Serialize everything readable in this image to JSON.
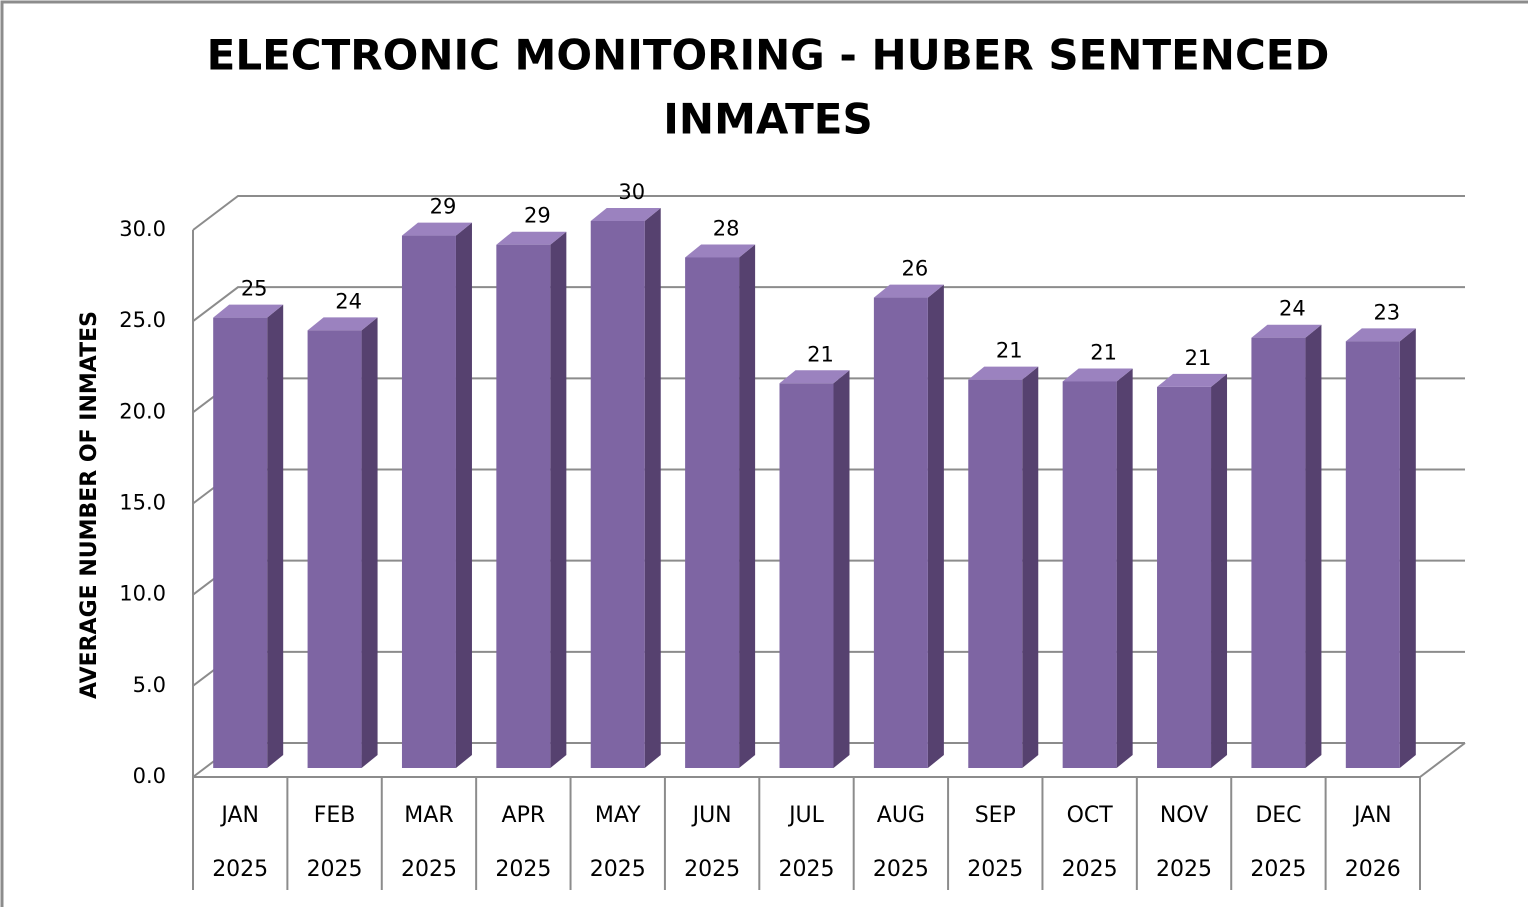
{
  "chart_data": {
    "type": "bar3d",
    "title": [
      "ELECTRONIC MONITORING - HUBER SENTENCED",
      "INMATES"
    ],
    "y_label": "AVERAGE NUMBER OF INMATES",
    "categories": [
      [
        "JAN",
        "2025"
      ],
      [
        "FEB",
        "2025"
      ],
      [
        "MAR",
        "2025"
      ],
      [
        "APR",
        "2025"
      ],
      [
        "MAY",
        "2025"
      ],
      [
        "JUN",
        "2025"
      ],
      [
        "JUL",
        "2025"
      ],
      [
        "AUG",
        "2025"
      ],
      [
        "SEP",
        "2025"
      ],
      [
        "OCT",
        "2025"
      ],
      [
        "NOV",
        "2025"
      ],
      [
        "DEC",
        "2025"
      ],
      [
        "JAN",
        "2026"
      ]
    ],
    "values": [
      24.7,
      24.0,
      29.2,
      28.7,
      30.0,
      28.0,
      21.1,
      25.8,
      21.3,
      21.2,
      20.9,
      23.6,
      23.4
    ],
    "value_labels": [
      "25",
      "24",
      "29",
      "29",
      "30",
      "28",
      "21",
      "26",
      "21",
      "21",
      "21",
      "24",
      "23"
    ],
    "color": "#7e65a3",
    "ylim": [
      0,
      30
    ],
    "yticks": [
      {
        "value": 0,
        "label": "0.0"
      },
      {
        "value": 5,
        "label": "5.0"
      },
      {
        "value": 10,
        "label": "10.0"
      },
      {
        "value": 15,
        "label": "15.0"
      },
      {
        "value": 20,
        "label": "20.0"
      },
      {
        "value": 25,
        "label": "25.0"
      },
      {
        "value": 30,
        "label": "30.0"
      }
    ],
    "grid": true
  }
}
